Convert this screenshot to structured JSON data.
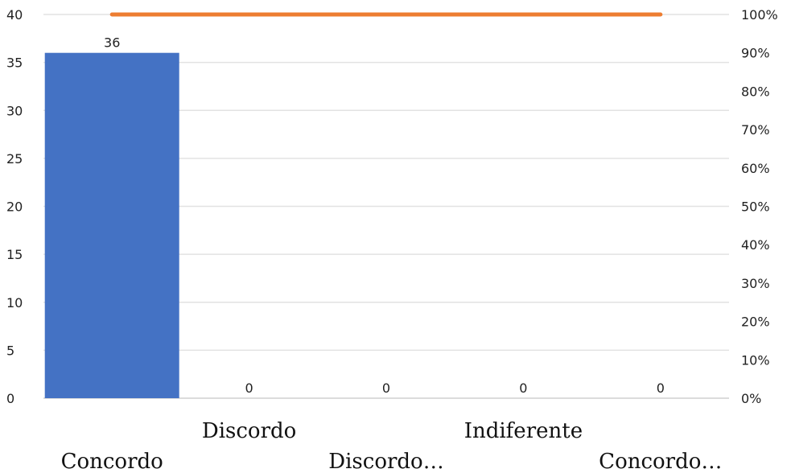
{
  "chart_data": {
    "type": "bar",
    "categories": [
      "Concordo",
      "Discordo",
      "Discordo…",
      "Indiferente",
      "Concordo…"
    ],
    "series": [
      {
        "type": "bar",
        "values": [
          36,
          0,
          0,
          0,
          0
        ],
        "color": "#4472C4"
      },
      {
        "type": "line",
        "axis": "right",
        "values": [
          1.0,
          1.0,
          1.0,
          1.0,
          1.0
        ],
        "color": "#ED7D31"
      }
    ],
    "data_labels": [
      "36",
      "0",
      "0",
      "0",
      "0"
    ],
    "y_left": {
      "ylim": [
        0,
        40
      ],
      "ticks": [
        "0",
        "5",
        "10",
        "15",
        "20",
        "25",
        "30",
        "35",
        "40"
      ]
    },
    "y_right": {
      "ylim": [
        0,
        1
      ],
      "ticks": [
        "0%",
        "10%",
        "20%",
        "30%",
        "40%",
        "50%",
        "60%",
        "70%",
        "80%",
        "90%",
        "100%"
      ]
    },
    "grid": true,
    "title": "",
    "xlabel": "",
    "ylabel": ""
  }
}
